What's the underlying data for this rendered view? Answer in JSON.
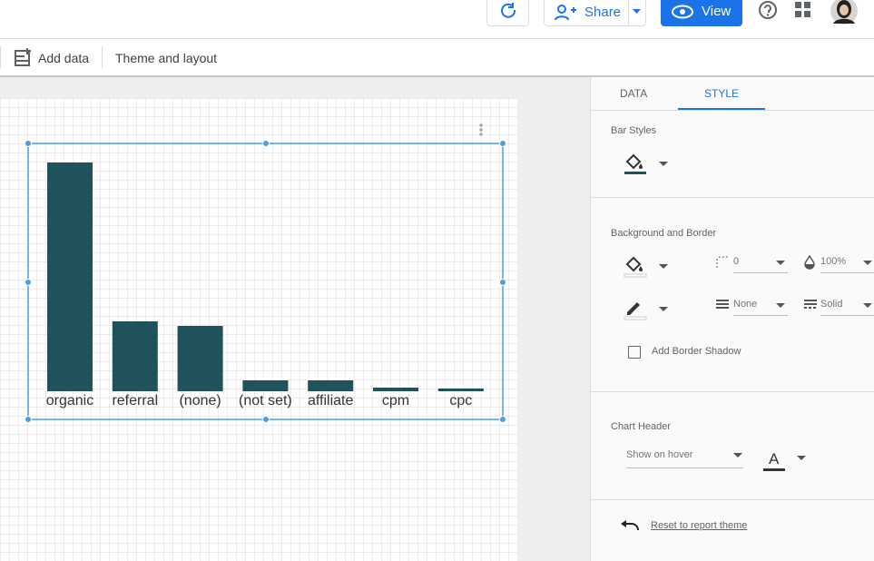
{
  "toolbar": {
    "share": "Share",
    "view": "View",
    "add_data": "Add data",
    "theme": "Theme and layout"
  },
  "chart_data": {
    "type": "bar",
    "categories": [
      "organic",
      "referral",
      "(none)",
      "(not set)",
      "affiliate",
      "cpm",
      "cpc"
    ],
    "values": [
      252,
      77,
      72,
      12,
      12,
      4,
      3
    ],
    "color": "#1f525a",
    "ylim": [
      0,
      252
    ]
  },
  "panel": {
    "tabs": [
      "DATA",
      "STYLE"
    ],
    "bar_styles": "Bar Styles",
    "background_border": "Background and Border",
    "radius": "0",
    "opacity": "100%",
    "border_weight": "None",
    "border_style": "Solid",
    "shadow": "Add Border Shadow",
    "chart_header": "Chart Header",
    "header_option": "Show on hover",
    "header_font": "A",
    "reset": "Reset to report theme"
  }
}
